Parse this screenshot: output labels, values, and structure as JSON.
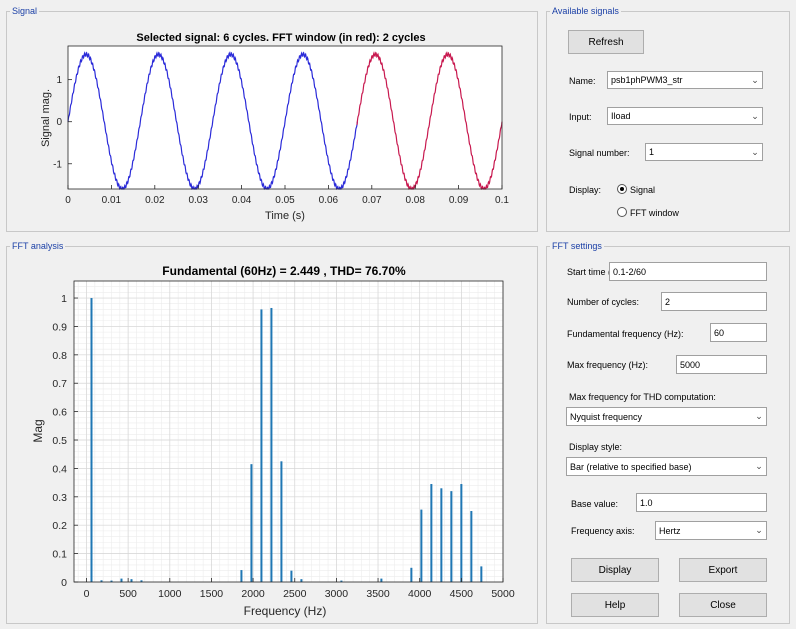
{
  "signal_panel": {
    "title": "Signal",
    "chart_data": {
      "type": "line",
      "title": "Selected signal: 6 cycles. FFT window (in red): 2 cycles",
      "xlabel": "Time (s)",
      "ylabel": "Signal mag.",
      "xlim": [
        0,
        0.1
      ],
      "ylim": [
        -1.6,
        1.8
      ],
      "xticks": [
        0,
        0.01,
        0.02,
        0.03,
        0.04,
        0.05,
        0.06,
        0.07,
        0.08,
        0.09,
        0.1
      ],
      "xtick_labels": [
        "0",
        "0.01",
        "0.02",
        "0.03",
        "0.04",
        "0.05",
        "0.06",
        "0.07",
        "0.08",
        "0.09",
        "0.1"
      ],
      "yticks": [
        -1,
        0,
        1
      ],
      "ytick_labels": [
        "-1",
        "0",
        "1"
      ],
      "frequency_hz": 60,
      "amplitude": 1.6,
      "fft_window": [
        0.06667,
        0.1
      ],
      "colors": {
        "signal": "#2b2bd9",
        "window": "#c8194f"
      }
    }
  },
  "available_signals": {
    "title": "Available signals",
    "refresh_label": "Refresh",
    "name_label": "Name:",
    "name_value": "psb1phPWM3_str",
    "input_label": "Input:",
    "input_value": "Iload",
    "signal_number_label": "Signal number:",
    "signal_number_value": "1",
    "display_label": "Display:",
    "display_signal": "Signal",
    "display_fft": "FFT window"
  },
  "fft_panel": {
    "title": "FFT analysis",
    "chart_data": {
      "type": "bar",
      "title": "Fundamental (60Hz) = 2.449 , THD= 76.70%",
      "xlabel": "Frequency (Hz)",
      "ylabel": "Mag",
      "xlim": [
        -150,
        5000
      ],
      "ylim": [
        0,
        1.06
      ],
      "xticks": [
        0,
        500,
        1000,
        1500,
        2000,
        2500,
        3000,
        3500,
        4000,
        4500,
        5000
      ],
      "xtick_labels": [
        "0",
        "500",
        "1000",
        "1500",
        "2000",
        "2500",
        "3000",
        "3500",
        "4000",
        "4500",
        "5000"
      ],
      "yticks": [
        0,
        0.1,
        0.2,
        0.3,
        0.4,
        0.5,
        0.6,
        0.7,
        0.8,
        0.9,
        1
      ],
      "ytick_labels": [
        "0",
        "0.1",
        "0.2",
        "0.3",
        "0.4",
        "0.5",
        "0.6",
        "0.7",
        "0.8",
        "0.9",
        "1"
      ],
      "bars": [
        {
          "f": 60,
          "v": 1.0
        },
        {
          "f": 180,
          "v": 0.006
        },
        {
          "f": 300,
          "v": 0.005
        },
        {
          "f": 420,
          "v": 0.012
        },
        {
          "f": 540,
          "v": 0.01
        },
        {
          "f": 660,
          "v": 0.006
        },
        {
          "f": 1860,
          "v": 0.042
        },
        {
          "f": 1980,
          "v": 0.415
        },
        {
          "f": 2100,
          "v": 0.96
        },
        {
          "f": 2220,
          "v": 0.965
        },
        {
          "f": 2340,
          "v": 0.425
        },
        {
          "f": 2460,
          "v": 0.04
        },
        {
          "f": 2580,
          "v": 0.01
        },
        {
          "f": 3060,
          "v": 0.005
        },
        {
          "f": 3540,
          "v": 0.012
        },
        {
          "f": 3900,
          "v": 0.05
        },
        {
          "f": 4020,
          "v": 0.255
        },
        {
          "f": 4140,
          "v": 0.345
        },
        {
          "f": 4260,
          "v": 0.33
        },
        {
          "f": 4380,
          "v": 0.32
        },
        {
          "f": 4500,
          "v": 0.345
        },
        {
          "f": 4620,
          "v": 0.25
        },
        {
          "f": 4740,
          "v": 0.055
        }
      ],
      "colors": {
        "bar": "#1f77b4"
      }
    }
  },
  "fft_settings": {
    "title": "FFT settings",
    "start_time_label": "Start time (s):",
    "start_time_value": "0.1-2/60",
    "num_cycles_label": "Number of cycles:",
    "num_cycles_value": "2",
    "fund_freq_label": "Fundamental frequency (Hz):",
    "fund_freq_value": "60",
    "max_freq_label": "Max frequency (Hz):",
    "max_freq_value": "5000",
    "thd_label": "Max frequency for THD computation:",
    "thd_value": "Nyquist frequency",
    "display_style_label": "Display style:",
    "display_style_value": "Bar (relative to specified base)",
    "base_value_label": "Base value:",
    "base_value_value": "1.0",
    "freq_axis_label": "Frequency axis:",
    "freq_axis_value": "Hertz",
    "display_button": "Display",
    "export_button": "Export",
    "help_button": "Help",
    "close_button": "Close"
  }
}
